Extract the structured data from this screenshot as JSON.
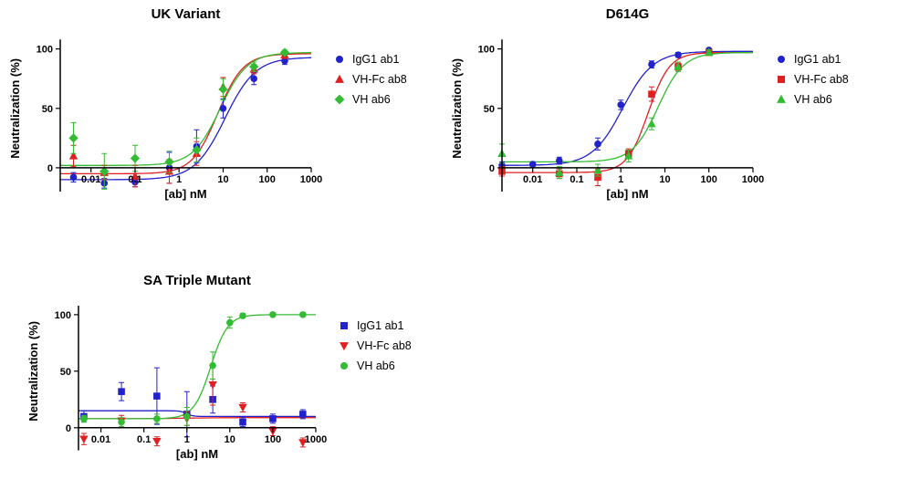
{
  "chart_data": [
    {
      "type": "scatter",
      "curve_fit": "sigmoidal dose-response",
      "title": "UK Variant",
      "xlabel": "[ab] nM",
      "ylabel": "Neutralization (%)",
      "x_scale": "log",
      "xlim": [
        0.002,
        1000
      ],
      "ylim": [
        -30,
        112
      ],
      "yaxis_span": [
        -20,
        108
      ],
      "xticks": [
        {
          "v": 0.01,
          "label": "0.01"
        },
        {
          "v": 0.1,
          "label": "0.1"
        },
        {
          "v": 1,
          "label": "1"
        },
        {
          "v": 10,
          "label": "10"
        },
        {
          "v": 100,
          "label": "100"
        },
        {
          "v": 1000,
          "label": "1000"
        }
      ],
      "yticks": [
        0,
        50,
        100
      ],
      "legend_position": "right",
      "series": [
        {
          "name": "IgG1 ab1",
          "color": "#2222CC",
          "marker": "circle",
          "points": [
            [
              0.004,
              -8,
              4
            ],
            [
              0.02,
              -13,
              4
            ],
            [
              0.1,
              -12,
              4
            ],
            [
              0.6,
              0,
              13
            ],
            [
              2.5,
              18,
              14
            ],
            [
              10,
              50,
              8
            ],
            [
              50,
              75,
              5
            ],
            [
              250,
              90,
              3
            ]
          ],
          "curve": {
            "bottom": -10,
            "top": 93,
            "ec50": 11,
            "hill": 1.25
          }
        },
        {
          "name": "VH-Fc ab8",
          "color": "#E02020",
          "marker": "triangle-up",
          "points": [
            [
              0.004,
              10,
              9
            ],
            [
              0.02,
              -4,
              6
            ],
            [
              0.1,
              -7,
              9
            ],
            [
              0.6,
              -3,
              10
            ],
            [
              2.5,
              12,
              10
            ],
            [
              10,
              68,
              8
            ],
            [
              50,
              83,
              4
            ],
            [
              250,
              95,
              3
            ]
          ],
          "curve": {
            "bottom": -5,
            "top": 96,
            "ec50": 7.5,
            "hill": 1.5
          }
        },
        {
          "name": "VH ab6",
          "color": "#33BB33",
          "marker": "diamond",
          "points": [
            [
              0.004,
              25,
              13
            ],
            [
              0.02,
              -3,
              15
            ],
            [
              0.1,
              8,
              11
            ],
            [
              0.6,
              5,
              9
            ],
            [
              2.5,
              15,
              10
            ],
            [
              10,
              66,
              9
            ],
            [
              50,
              85,
              4
            ],
            [
              250,
              97,
              2
            ]
          ],
          "curve": {
            "bottom": 2,
            "top": 97,
            "ec50": 8.5,
            "hill": 1.4
          }
        }
      ]
    },
    {
      "type": "scatter",
      "curve_fit": "sigmoidal dose-response",
      "title": "D614G",
      "xlabel": "[ab] nM",
      "ylabel": "Neutralization (%)",
      "x_scale": "log",
      "xlim": [
        0.002,
        1000
      ],
      "ylim": [
        -30,
        112
      ],
      "yaxis_span": [
        -20,
        108
      ],
      "xticks": [
        {
          "v": 0.01,
          "label": "0.01"
        },
        {
          "v": 0.1,
          "label": "0.1"
        },
        {
          "v": 1,
          "label": "1"
        },
        {
          "v": 10,
          "label": "10"
        },
        {
          "v": 100,
          "label": "100"
        },
        {
          "v": 1000,
          "label": "1000"
        }
      ],
      "yticks": [
        0,
        50,
        100
      ],
      "legend_position": "right",
      "series": [
        {
          "name": "IgG1 ab1",
          "color": "#2222CC",
          "marker": "circle",
          "points": [
            [
              0.002,
              2,
              3
            ],
            [
              0.01,
              3,
              2
            ],
            [
              0.04,
              6,
              3
            ],
            [
              0.3,
              20,
              5
            ],
            [
              1,
              53,
              4
            ],
            [
              5,
              87,
              3
            ],
            [
              20,
              95,
              2
            ],
            [
              100,
              99,
              1
            ]
          ],
          "curve": {
            "bottom": 2,
            "top": 98,
            "ec50": 1.1,
            "hill": 1.25
          }
        },
        {
          "name": "VH-Fc ab8",
          "color": "#E02020",
          "marker": "square",
          "points": [
            [
              0.002,
              -3,
              4
            ],
            [
              0.04,
              -5,
              4
            ],
            [
              0.3,
              -8,
              7
            ],
            [
              1.5,
              12,
              4
            ],
            [
              5,
              62,
              6
            ],
            [
              20,
              85,
              3
            ],
            [
              100,
              97,
              2
            ]
          ],
          "curve": {
            "bottom": -4,
            "top": 97,
            "ec50": 4.2,
            "hill": 1.8
          }
        },
        {
          "name": "VH ab6",
          "color": "#33BB33",
          "marker": "triangle-up",
          "points": [
            [
              0.002,
              12,
              8
            ],
            [
              0.04,
              -4,
              5
            ],
            [
              0.3,
              -2,
              5
            ],
            [
              1.5,
              10,
              5
            ],
            [
              5,
              37,
              5
            ],
            [
              20,
              85,
              4
            ],
            [
              100,
              97,
              2
            ]
          ],
          "curve": {
            "bottom": 5,
            "top": 97,
            "ec50": 7,
            "hill": 1.5
          }
        }
      ]
    },
    {
      "type": "scatter",
      "curve_fit": "sigmoidal dose-response",
      "title": "SA Triple Mutant",
      "xlabel": "[ab] nM",
      "ylabel": "Neutralization (%)",
      "x_scale": "log",
      "xlim": [
        0.003,
        1000
      ],
      "ylim": [
        -30,
        112
      ],
      "yaxis_span": [
        -20,
        108
      ],
      "xticks": [
        {
          "v": 0.01,
          "label": "0.01"
        },
        {
          "v": 0.1,
          "label": "0.1"
        },
        {
          "v": 1,
          "label": "1"
        },
        {
          "v": 10,
          "label": "10"
        },
        {
          "v": 100,
          "label": "100"
        },
        {
          "v": 1000,
          "label": "1000"
        }
      ],
      "yticks": [
        0,
        50,
        100
      ],
      "legend_position": "right",
      "series": [
        {
          "name": "IgG1 ab1",
          "color": "#2222CC",
          "marker": "square",
          "points": [
            [
              0.004,
              10,
              5
            ],
            [
              0.03,
              32,
              8
            ],
            [
              0.2,
              28,
              25
            ],
            [
              1,
              12,
              20
            ],
            [
              4,
              25,
              12
            ],
            [
              20,
              5,
              4
            ],
            [
              100,
              8,
              4
            ],
            [
              500,
              12,
              4
            ]
          ],
          "curve": {
            "bottom": 10,
            "top": 15,
            "ec50": 1,
            "hill": -6
          }
        },
        {
          "name": "VH-Fc ab8",
          "color": "#E02020",
          "marker": "triangle-down",
          "points": [
            [
              0.004,
              -10,
              5
            ],
            [
              0.03,
              6,
              5
            ],
            [
              0.2,
              -12,
              4
            ],
            [
              1,
              8,
              6
            ],
            [
              4,
              38,
              18
            ],
            [
              20,
              18,
              4
            ],
            [
              100,
              -3,
              4
            ],
            [
              500,
              -13,
              4
            ]
          ],
          "curve": {
            "bottom": 8,
            "top": 9,
            "ec50": 1,
            "hill": 1
          }
        },
        {
          "name": "VH ab6",
          "color": "#33BB33",
          "marker": "circle",
          "points": [
            [
              0.004,
              8,
              3
            ],
            [
              0.03,
              5,
              4
            ],
            [
              0.2,
              8,
              4
            ],
            [
              1,
              10,
              8
            ],
            [
              4,
              55,
              12
            ],
            [
              10,
              93,
              5
            ],
            [
              20,
              99,
              2
            ],
            [
              100,
              100,
              1
            ],
            [
              500,
              100,
              1
            ]
          ],
          "curve": {
            "bottom": 8,
            "top": 100,
            "ec50": 3.6,
            "hill": 2.2
          }
        }
      ]
    }
  ]
}
